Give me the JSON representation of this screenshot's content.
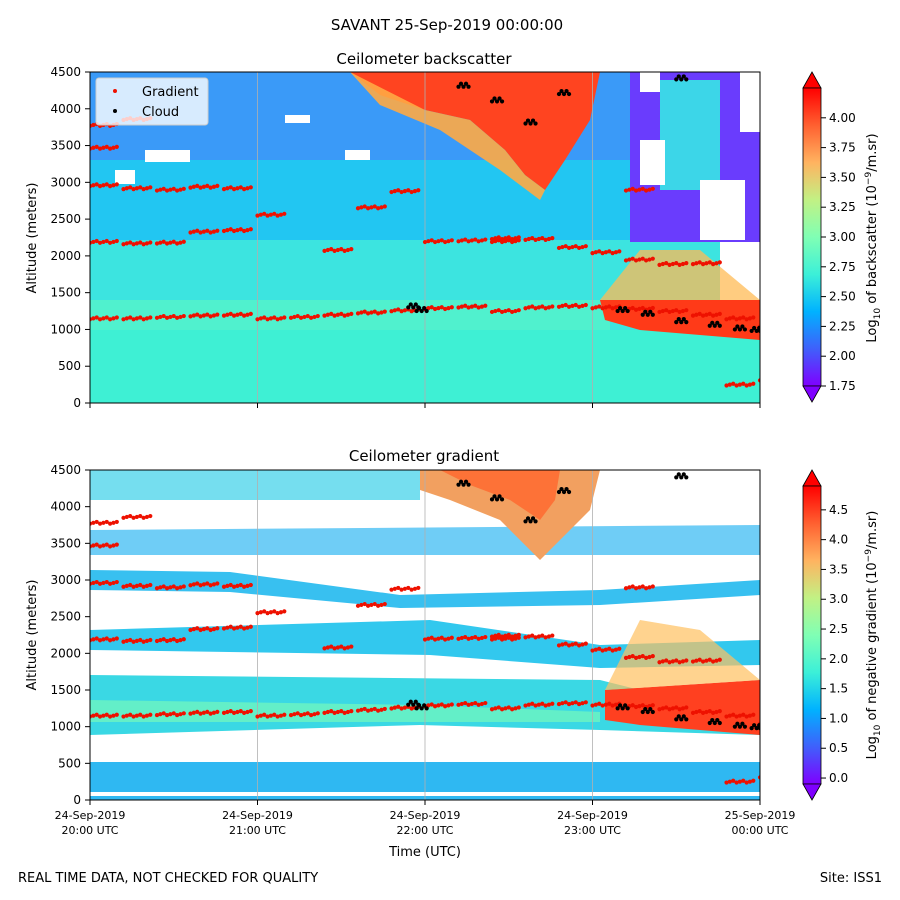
{
  "suptitle": "SAVANT 25-Sep-2019 00:00:00",
  "footer_left": "REAL TIME DATA, NOT CHECKED FOR QUALITY",
  "footer_right": "Site: ISS1",
  "colors": {
    "gradient_marker": "#ee1100",
    "cloud_marker": "#000000",
    "colormap": [
      "#7f00ff",
      "#3f60fb",
      "#00b2ff",
      "#3cf0d8",
      "#80ffb4",
      "#c2f184",
      "#ffb360",
      "#ff6030",
      "#ff0000"
    ]
  },
  "chart_data": [
    {
      "type": "heatmap",
      "name": "backscatter",
      "title": "Ceilometer backscatter",
      "xlabel": "",
      "ylabel": "Altitude (meters)",
      "ylim": [
        0,
        4500
      ],
      "yticks": [
        "0",
        "500",
        "1000",
        "1500",
        "2000",
        "2500",
        "3000",
        "3500",
        "4000",
        "4500"
      ],
      "xlim_hours_utc": [
        20,
        24
      ],
      "grid_x": true,
      "legend": {
        "position": "top-left",
        "entries": [
          {
            "label": "Gradient",
            "color": "#ee1100"
          },
          {
            "label": "Cloud",
            "color": "#000000"
          }
        ]
      },
      "colorbar": {
        "label": "Log10 of backscatter (10^-9/m.sr)",
        "label_parts": [
          "Log",
          "10",
          " of backscatter (10",
          "−9",
          "/m.sr)"
        ],
        "min": 1.75,
        "max": 4.25,
        "ticks": [
          "1.75",
          "2.00",
          "2.25",
          "2.50",
          "2.75",
          "3.00",
          "3.25",
          "3.50",
          "3.75",
          "4.00"
        ],
        "tick_values": [
          1.75,
          2.0,
          2.25,
          2.5,
          2.75,
          3.0,
          3.25,
          3.5,
          3.75,
          4.0
        ]
      }
    },
    {
      "type": "heatmap",
      "name": "gradient",
      "title": "Ceilometer gradient",
      "xlabel": "Time (UTC)",
      "ylabel": "Altitude (meters)",
      "ylim": [
        0,
        4500
      ],
      "yticks": [
        "0",
        "500",
        "1000",
        "1500",
        "2000",
        "2500",
        "3000",
        "3500",
        "4000",
        "4500"
      ],
      "xticks": [
        {
          "hour": 20,
          "date": "24-Sep-2019",
          "time": "20:00 UTC"
        },
        {
          "hour": 21,
          "date": "24-Sep-2019",
          "time": "21:00 UTC"
        },
        {
          "hour": 22,
          "date": "24-Sep-2019",
          "time": "22:00 UTC"
        },
        {
          "hour": 23,
          "date": "24-Sep-2019",
          "time": "23:00 UTC"
        },
        {
          "hour": 24,
          "date": "25-Sep-2019",
          "time": "00:00 UTC"
        }
      ],
      "grid_x": true,
      "colorbar": {
        "label": "Log10 of negative gradient (10^-9/m.sr)",
        "label_parts": [
          "Log",
          "10",
          " of negative gradient (10",
          "−9",
          "/m.sr)"
        ],
        "min": -0.1,
        "max": 4.9,
        "ticks": [
          "0.0",
          "0.5",
          "1.0",
          "1.5",
          "2.0",
          "2.5",
          "3.0",
          "3.5",
          "4.0",
          "4.5"
        ],
        "tick_values": [
          0,
          0.5,
          1.0,
          1.5,
          2.0,
          2.5,
          3.0,
          3.5,
          4.0,
          4.5
        ]
      }
    }
  ],
  "layers": [
    {
      "t": 20.0,
      "altitudes": [
        1150,
        2190,
        2960,
        3470,
        3780
      ]
    },
    {
      "t": 20.2,
      "altitudes": [
        1150,
        2170,
        2920,
        3860
      ]
    },
    {
      "t": 20.4,
      "altitudes": [
        1170,
        2180,
        2900
      ]
    },
    {
      "t": 20.6,
      "altitudes": [
        1190,
        2330,
        2940
      ]
    },
    {
      "t": 20.8,
      "altitudes": [
        1200,
        2350,
        2920
      ]
    },
    {
      "t": 21.0,
      "altitudes": [
        1150,
        2560
      ]
    },
    {
      "t": 21.2,
      "altitudes": [
        1170
      ]
    },
    {
      "t": 21.4,
      "altitudes": [
        1200,
        2080
      ]
    },
    {
      "t": 21.6,
      "altitudes": [
        1230,
        2660
      ]
    },
    {
      "t": 21.8,
      "altitudes": [
        1260,
        2880
      ]
    },
    {
      "t": 22.0,
      "altitudes": [
        1290,
        2200
      ]
    },
    {
      "t": 22.2,
      "altitudes": [
        1310,
        2210
      ]
    },
    {
      "t": 22.4,
      "altitudes": [
        1250,
        2200,
        2240
      ]
    },
    {
      "t": 22.6,
      "altitudes": [
        1300,
        2230
      ]
    },
    {
      "t": 22.8,
      "altitudes": [
        1320,
        2120
      ]
    },
    {
      "t": 23.0,
      "altitudes": [
        1300,
        2050
      ]
    },
    {
      "t": 23.2,
      "altitudes": [
        1280,
        1950,
        2900
      ]
    },
    {
      "t": 23.4,
      "altitudes": [
        1250,
        1890
      ]
    },
    {
      "t": 23.6,
      "altitudes": [
        1200,
        1900
      ]
    },
    {
      "t": 23.8,
      "altitudes": [
        1150,
        250
      ]
    },
    {
      "t": 24.0,
      "altitudes": [
        1050,
        320
      ]
    }
  ]
}
